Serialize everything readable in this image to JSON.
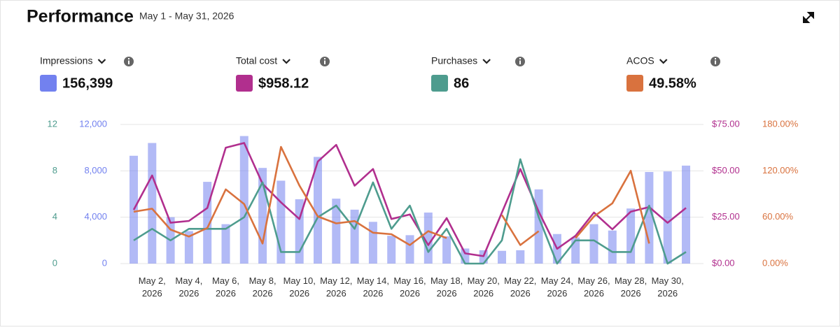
{
  "title": "Performance",
  "date_range": "May 1 - May 31, 2026",
  "chart_data": {
    "type": "combo",
    "categories": [
      null,
      "May 2, 2026",
      null,
      "May 4, 2026",
      null,
      "May 6, 2026",
      null,
      "May 8, 2026",
      null,
      "May 10, 2026",
      null,
      "May 12, 2026",
      null,
      "May 14, 2026",
      null,
      "May 16, 2026",
      null,
      "May 18, 2026",
      null,
      "May 20, 2026",
      null,
      "May 22, 2026",
      null,
      "May 24, 2026",
      null,
      "May 26, 2026",
      null,
      "May 28, 2026",
      null,
      "May 30, 2026",
      null
    ],
    "ylim": [
      0,
      12000
    ],
    "yticks": [
      0,
      {
        "value": 4000,
        "label": "4,000"
      },
      {
        "value": 8000,
        "label": "8,000"
      },
      {
        "value": 12000,
        "label": "12,000"
      }
    ],
    "y2lim": [
      0,
      75
    ],
    "y2ticks": [
      {
        "value": 0,
        "label": "$0.00"
      },
      {
        "value": 25,
        "label": "$25.00"
      },
      {
        "value": 50,
        "label": "$50.00"
      },
      {
        "value": 75,
        "label": "$75.00"
      }
    ],
    "y3lim": [
      0,
      12
    ],
    "y3ticks": [
      0,
      4,
      8,
      12
    ],
    "y4lim": [
      0,
      180
    ],
    "y4ticks": [
      {
        "value": 0,
        "label": "0.00%"
      },
      {
        "value": 60,
        "label": "60.00%"
      },
      {
        "value": 120,
        "label": "120.00%"
      },
      {
        "value": 180,
        "label": "180.00%"
      }
    ],
    "grid": true,
    "series": [
      {
        "name": "Impressions",
        "type": "bar",
        "axis": "y",
        "color": "#7281ef",
        "total": 156399,
        "total_label": "156,399",
        "values": [
          9300,
          10400,
          4000,
          2800,
          7050,
          3400,
          11000,
          8250,
          7150,
          5550,
          9200,
          5600,
          4650,
          3600,
          2400,
          2450,
          4400,
          2350,
          1300,
          1150,
          1100,
          1150,
          6400,
          2550,
          2250,
          3400,
          2850,
          4750,
          7900,
          7950,
          8450
        ]
      },
      {
        "name": "Total cost",
        "type": "line",
        "axis": "y2",
        "color": "#b12f8e",
        "total": 958.12,
        "total_label": "$958.12",
        "values": [
          29,
          47.5,
          22,
          23,
          30,
          62.5,
          65,
          43,
          33,
          24,
          55,
          64,
          42,
          51,
          24,
          26.5,
          10,
          24.5,
          5.5,
          4,
          27.5,
          51,
          28,
          8,
          15,
          27.5,
          18.5,
          28,
          30.5,
          22,
          30
        ]
      },
      {
        "name": "Purchases",
        "type": "line",
        "axis": "y3",
        "color": "#4e9c8e",
        "total": 86,
        "total_label": "86",
        "values": [
          2,
          3,
          2,
          3,
          3,
          3,
          4,
          7,
          1,
          1,
          4,
          5,
          3,
          7,
          3,
          5,
          1,
          3,
          0,
          0,
          2,
          9,
          4,
          0,
          2,
          2,
          1,
          1,
          5,
          0,
          1
        ]
      },
      {
        "name": "ACOS",
        "type": "line",
        "axis": "y4",
        "color": "#d9723e",
        "total": 49.58,
        "total_label": "49.58%",
        "values": [
          67,
          71,
          44,
          35,
          46,
          96,
          77,
          26,
          151,
          101,
          61,
          52,
          55,
          40,
          38,
          24,
          42,
          33,
          null,
          null,
          63,
          24,
          42,
          null,
          33,
          61,
          78,
          120,
          26,
          null,
          null
        ]
      }
    ]
  }
}
